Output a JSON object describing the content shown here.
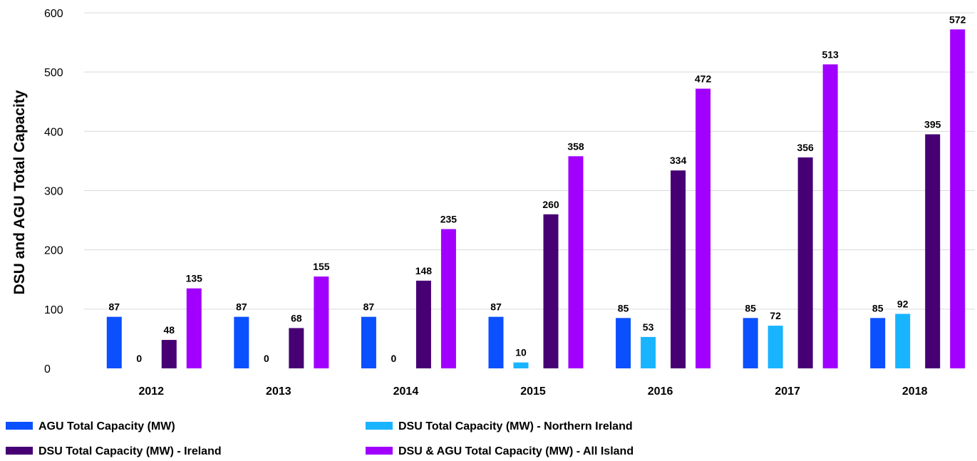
{
  "chart_data": {
    "type": "bar",
    "ylabel": "DSU and AGU Total Capacity",
    "xlabel": "",
    "ylim": [
      0,
      600
    ],
    "yticks": [
      0,
      100,
      200,
      300,
      400,
      500,
      600
    ],
    "grid": true,
    "legend_position": "bottom",
    "categories": [
      "2012",
      "2013",
      "2014",
      "2015",
      "2016",
      "2017",
      "2018"
    ],
    "series": [
      {
        "name": "AGU Total Capacity (MW)",
        "color": "#0a50ff",
        "values": [
          87,
          87,
          87,
          87,
          85,
          85,
          85
        ]
      },
      {
        "name": "DSU Total Capacity (MW) - Northern Ireland",
        "color": "#19b4ff",
        "values": [
          0,
          0,
          0,
          10,
          53,
          72,
          92
        ]
      },
      {
        "name": "DSU Total Capacity (MW) - Ireland",
        "color": "#460073",
        "values": [
          48,
          68,
          148,
          260,
          334,
          356,
          395
        ]
      },
      {
        "name": "DSU & AGU Total Capacity (MW) - All Island",
        "color": "#a100ff",
        "values": [
          135,
          155,
          235,
          358,
          472,
          513,
          572
        ]
      }
    ]
  }
}
